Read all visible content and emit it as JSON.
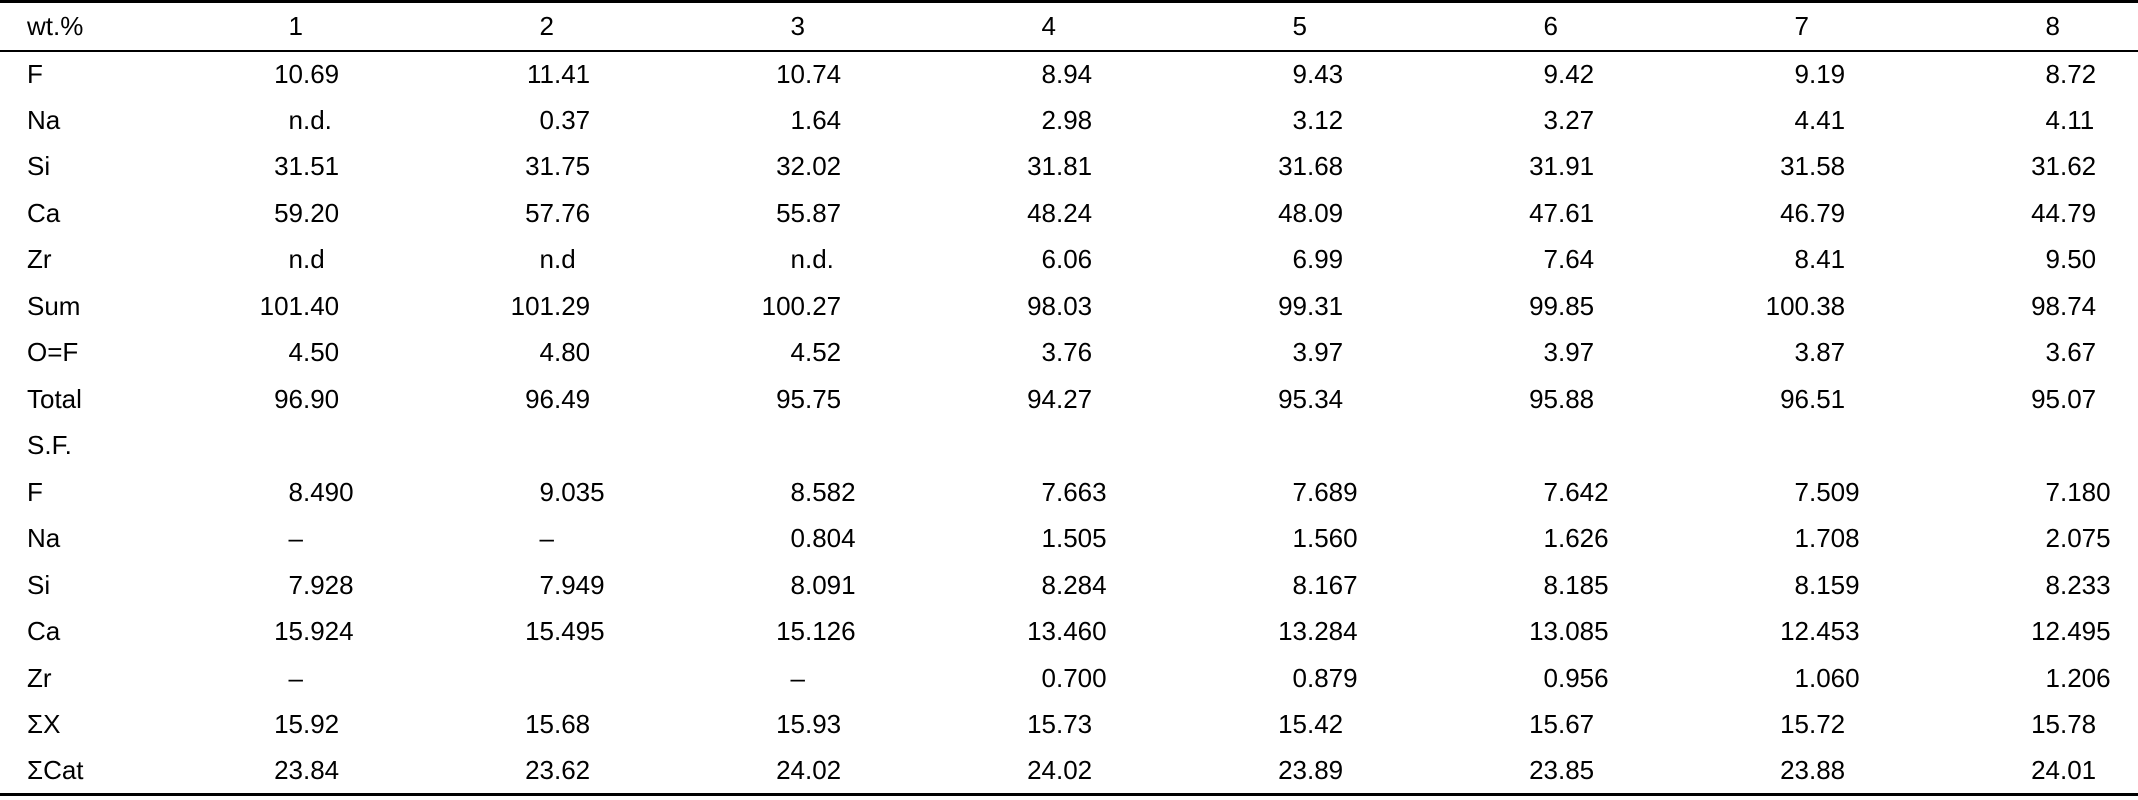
{
  "table": {
    "header": {
      "label": "wt.%",
      "columns": [
        "1",
        "2",
        "3",
        "4",
        "5",
        "6",
        "7",
        "8"
      ]
    },
    "rows": [
      {
        "label": "F",
        "values": [
          "10.69",
          "11.41",
          "10.74",
          "8.94",
          "9.43",
          "9.42",
          "9.19",
          "8.72"
        ]
      },
      {
        "label": "Na",
        "values": [
          "n.d.",
          "0.37",
          "1.64",
          "2.98",
          "3.12",
          "3.27",
          "4.41",
          "4.11"
        ]
      },
      {
        "label": "Si",
        "values": [
          "31.51",
          "31.75",
          "32.02",
          "31.81",
          "31.68",
          "31.91",
          "31.58",
          "31.62"
        ]
      },
      {
        "label": "Ca",
        "values": [
          "59.20",
          "57.76",
          "55.87",
          "48.24",
          "48.09",
          "47.61",
          "46.79",
          "44.79"
        ]
      },
      {
        "label": "Zr",
        "values": [
          "n.d",
          "n.d",
          "n.d.",
          "6.06",
          "6.99",
          "7.64",
          "8.41",
          "9.50"
        ]
      },
      {
        "label": "Sum",
        "values": [
          "101.40",
          "101.29",
          "100.27",
          "98.03",
          "99.31",
          "99.85",
          "100.38",
          "98.74"
        ]
      },
      {
        "label": "O=F",
        "values": [
          "4.50",
          "4.80",
          "4.52",
          "3.76",
          "3.97",
          "3.97",
          "3.87",
          "3.67"
        ]
      },
      {
        "label": "Total",
        "values": [
          "96.90",
          "96.49",
          "95.75",
          "94.27",
          "95.34",
          "95.88",
          "96.51",
          "95.07"
        ]
      },
      {
        "label": "S.F.",
        "values": [
          "",
          "",
          "",
          "",
          "",
          "",
          "",
          ""
        ]
      },
      {
        "label": "F",
        "values": [
          "8.490",
          "9.035",
          "8.582",
          "7.663",
          "7.689",
          "7.642",
          "7.509",
          "7.180"
        ]
      },
      {
        "label": "Na",
        "values": [
          "–",
          "–",
          "0.804",
          "1.505",
          "1.560",
          "1.626",
          "1.708",
          "2.075"
        ]
      },
      {
        "label": "Si",
        "values": [
          "7.928",
          "7.949",
          "8.091",
          "8.284",
          "8.167",
          "8.185",
          "8.159",
          "8.233"
        ]
      },
      {
        "label": "Ca",
        "values": [
          "15.924",
          "15.495",
          "15.126",
          "13.460",
          "13.284",
          "13.085",
          "12.453",
          "12.495"
        ]
      },
      {
        "label": "Zr",
        "values": [
          "–",
          "",
          "–",
          "0.700",
          "0.879",
          "0.956",
          "1.060",
          "1.206"
        ]
      },
      {
        "label": "ΣX",
        "values": [
          "15.92",
          "15.68",
          "15.93",
          "15.73",
          "15.42",
          "15.67",
          "15.72",
          "15.78"
        ]
      },
      {
        "label": "ΣCat",
        "values": [
          "23.84",
          "23.62",
          "24.02",
          "24.02",
          "23.89",
          "23.85",
          "23.88",
          "24.01"
        ]
      }
    ]
  }
}
